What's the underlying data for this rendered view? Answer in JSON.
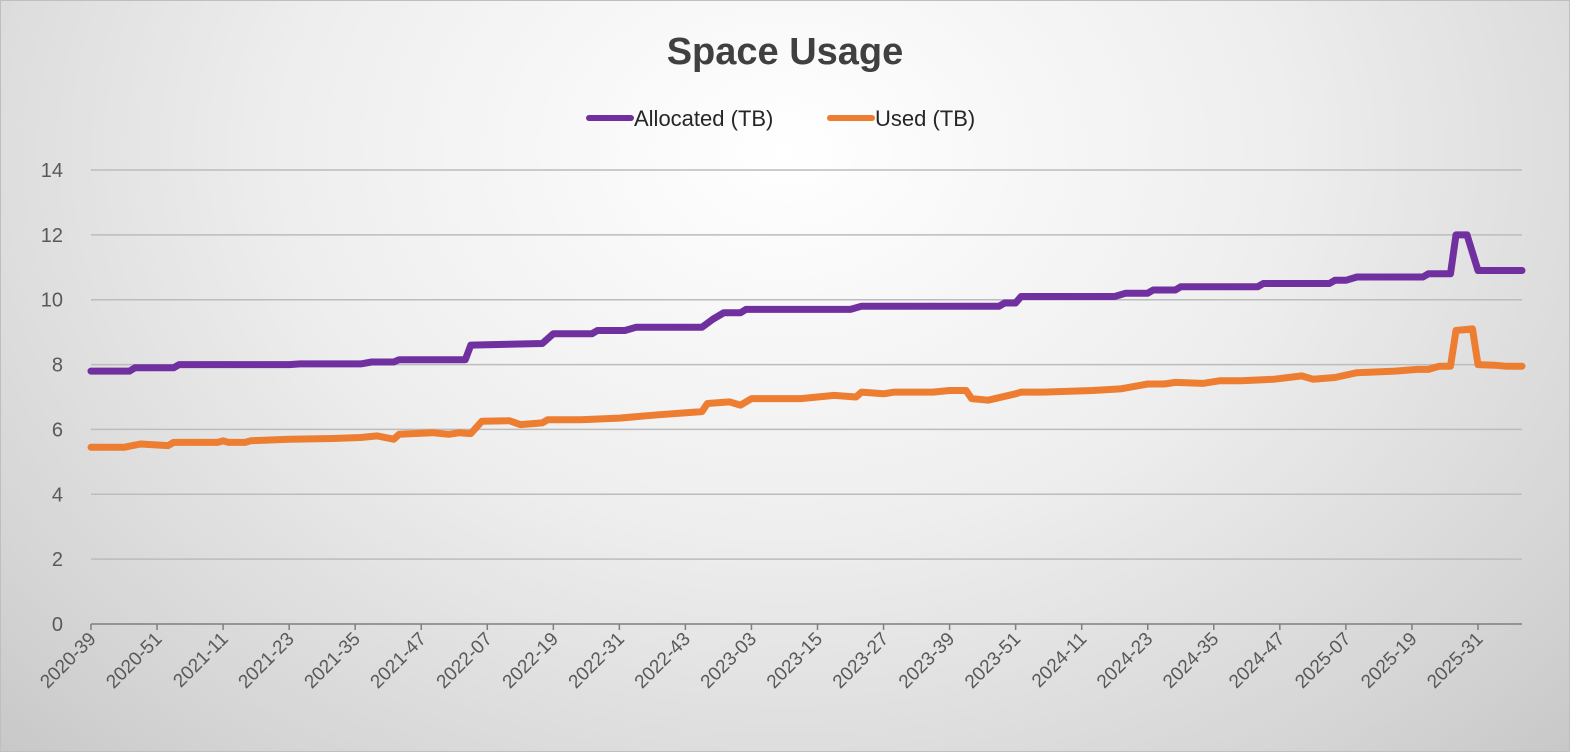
{
  "chart_data": {
    "type": "line",
    "title": "Space Usage",
    "xlabel": "",
    "ylabel": "",
    "ylim": [
      0,
      14
    ],
    "yticks": [
      0,
      2,
      4,
      6,
      8,
      10,
      12,
      14
    ],
    "grid": true,
    "legend_position": "top",
    "x_unit": "week index from 2020-39",
    "xlim": [
      0,
      260
    ],
    "xtick_interval_weeks": 12,
    "xtick_labels": [
      "2020-39",
      "2020-51",
      "2021-11",
      "2021-23",
      "2021-35",
      "2021-47",
      "2022-07",
      "2022-19",
      "2022-31",
      "2022-43",
      "2023-03",
      "2023-15",
      "2023-27",
      "2023-39",
      "2023-51",
      "2024-11",
      "2024-23",
      "2024-35",
      "2024-47",
      "2025-07",
      "2025-19",
      "2025-31"
    ],
    "series": [
      {
        "name": "Allocated (TB)",
        "color": "#7030A0",
        "points": [
          [
            0,
            7.8
          ],
          [
            7,
            7.8
          ],
          [
            8,
            7.9
          ],
          [
            15,
            7.9
          ],
          [
            16,
            8.0
          ],
          [
            36,
            8.0
          ],
          [
            38,
            8.02
          ],
          [
            49,
            8.02
          ],
          [
            51,
            8.08
          ],
          [
            55,
            8.08
          ],
          [
            56,
            8.15
          ],
          [
            68,
            8.15
          ],
          [
            69,
            8.6
          ],
          [
            82,
            8.65
          ],
          [
            84,
            8.95
          ],
          [
            91,
            8.95
          ],
          [
            92,
            9.05
          ],
          [
            97,
            9.05
          ],
          [
            99,
            9.15
          ],
          [
            111,
            9.15
          ],
          [
            113,
            9.4
          ],
          [
            115,
            9.6
          ],
          [
            118,
            9.6
          ],
          [
            119,
            9.7
          ],
          [
            138,
            9.7
          ],
          [
            140,
            9.8
          ],
          [
            165,
            9.8
          ],
          [
            166,
            9.9
          ],
          [
            168,
            9.9
          ],
          [
            169,
            10.1
          ],
          [
            186,
            10.1
          ],
          [
            188,
            10.2
          ],
          [
            192,
            10.2
          ],
          [
            193,
            10.3
          ],
          [
            197,
            10.3
          ],
          [
            198,
            10.4
          ],
          [
            212,
            10.4
          ],
          [
            213,
            10.5
          ],
          [
            225,
            10.5
          ],
          [
            226,
            10.6
          ],
          [
            228,
            10.6
          ],
          [
            230,
            10.7
          ],
          [
            242,
            10.7
          ],
          [
            243,
            10.8
          ],
          [
            247,
            10.8
          ],
          [
            248,
            12.0
          ],
          [
            250,
            12.0
          ],
          [
            252,
            10.9
          ],
          [
            260,
            10.9
          ]
        ]
      },
      {
        "name": "Used (TB)",
        "color": "#ED7D31",
        "points": [
          [
            0,
            5.45
          ],
          [
            6,
            5.45
          ],
          [
            9,
            5.55
          ],
          [
            14,
            5.5
          ],
          [
            15,
            5.6
          ],
          [
            23,
            5.6
          ],
          [
            24,
            5.65
          ],
          [
            25,
            5.6
          ],
          [
            28,
            5.6
          ],
          [
            29,
            5.65
          ],
          [
            36,
            5.7
          ],
          [
            44,
            5.72
          ],
          [
            49,
            5.75
          ],
          [
            52,
            5.8
          ],
          [
            55,
            5.7
          ],
          [
            56,
            5.85
          ],
          [
            62,
            5.9
          ],
          [
            65,
            5.85
          ],
          [
            67,
            5.9
          ],
          [
            69,
            5.87
          ],
          [
            71,
            6.25
          ],
          [
            76,
            6.27
          ],
          [
            78,
            6.15
          ],
          [
            82,
            6.2
          ],
          [
            83,
            6.3
          ],
          [
            89,
            6.3
          ],
          [
            96,
            6.35
          ],
          [
            103,
            6.45
          ],
          [
            111,
            6.55
          ],
          [
            112,
            6.8
          ],
          [
            116,
            6.85
          ],
          [
            118,
            6.75
          ],
          [
            120,
            6.95
          ],
          [
            129,
            6.95
          ],
          [
            135,
            7.05
          ],
          [
            139,
            7.0
          ],
          [
            140,
            7.15
          ],
          [
            144,
            7.1
          ],
          [
            146,
            7.15
          ],
          [
            153,
            7.15
          ],
          [
            156,
            7.2
          ],
          [
            159,
            7.2
          ],
          [
            160,
            6.95
          ],
          [
            163,
            6.9
          ],
          [
            168,
            7.1
          ],
          [
            169,
            7.15
          ],
          [
            173,
            7.15
          ],
          [
            182,
            7.2
          ],
          [
            187,
            7.25
          ],
          [
            192,
            7.4
          ],
          [
            195,
            7.4
          ],
          [
            197,
            7.45
          ],
          [
            202,
            7.42
          ],
          [
            205,
            7.5
          ],
          [
            209,
            7.5
          ],
          [
            215,
            7.55
          ],
          [
            220,
            7.65
          ],
          [
            222,
            7.55
          ],
          [
            226,
            7.6
          ],
          [
            230,
            7.75
          ],
          [
            237,
            7.8
          ],
          [
            241,
            7.85
          ],
          [
            243,
            7.85
          ],
          [
            245,
            7.95
          ],
          [
            247,
            7.95
          ],
          [
            248,
            9.05
          ],
          [
            251,
            9.1
          ],
          [
            252,
            8.0
          ],
          [
            255,
            7.98
          ],
          [
            257,
            7.95
          ],
          [
            260,
            7.95
          ]
        ]
      }
    ]
  }
}
